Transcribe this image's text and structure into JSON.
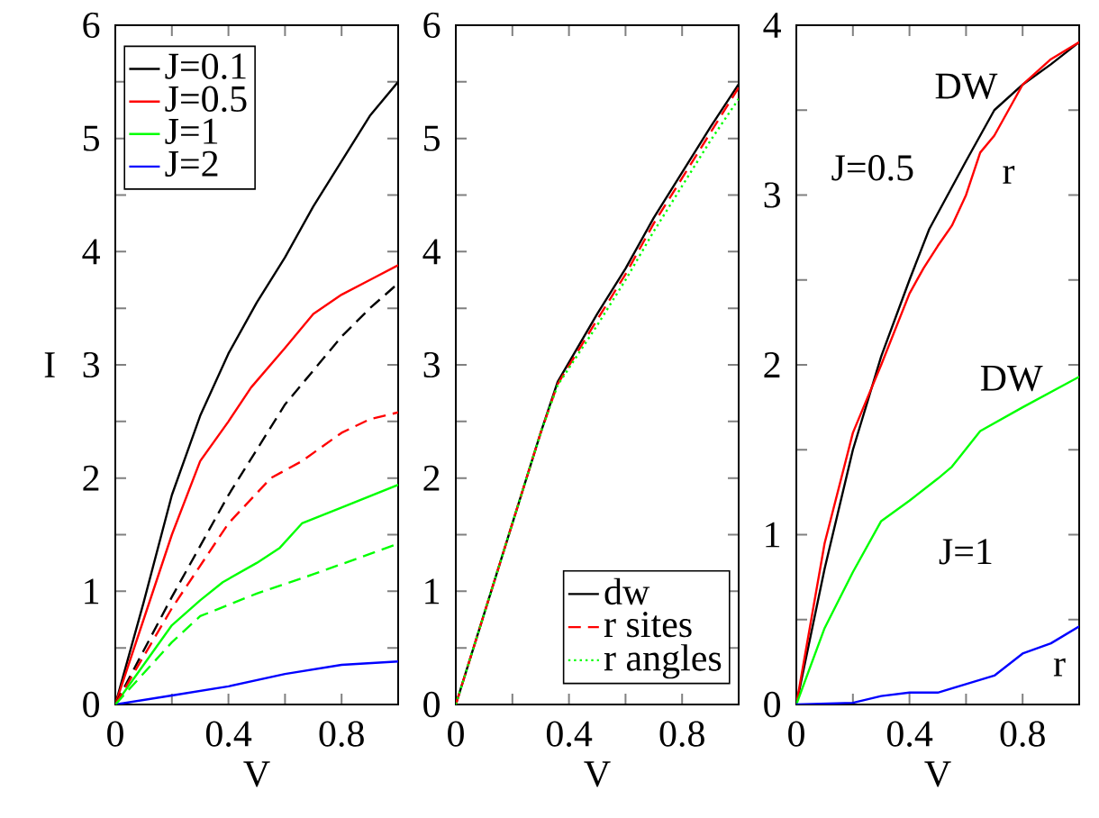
{
  "chart_data": [
    {
      "type": "line",
      "xlabel": "V",
      "ylabel": "I",
      "xlim": [
        0,
        1
      ],
      "ylim": [
        0,
        6
      ],
      "xticks": [
        0,
        {
          "value": 0.2,
          "label": null
        },
        0.4,
        {
          "value": 0.6,
          "label": null
        },
        0.8,
        {
          "value": 1,
          "label": null
        }
      ],
      "yticks": [
        0,
        {
          "value": 0.5,
          "label": null
        },
        1,
        {
          "value": 1.5,
          "label": null
        },
        2,
        {
          "value": 2.5,
          "label": null
        },
        3,
        {
          "value": 3.5,
          "label": null
        },
        4,
        {
          "value": 4.5,
          "label": null
        },
        5,
        {
          "value": 5.5,
          "label": null
        },
        6
      ],
      "legend": "top left",
      "grid": false,
      "series": [
        {
          "name": "J=0.1",
          "color": "#000000",
          "line_style": "solid",
          "x": [
            0,
            0.1,
            0.2,
            0.3,
            0.4,
            0.5,
            0.6,
            0.7,
            0.8,
            0.9,
            1
          ],
          "values": [
            0,
            0.9,
            1.85,
            2.55,
            3.1,
            3.55,
            3.95,
            4.4,
            4.8,
            5.2,
            5.5
          ]
        },
        {
          "name": "J=0.5",
          "color": "#ff0000",
          "line_style": "solid",
          "x": [
            0,
            0.1,
            0.2,
            0.3,
            0.4,
            0.48,
            0.6,
            0.7,
            0.8,
            0.9,
            1
          ],
          "values": [
            0,
            0.75,
            1.5,
            2.15,
            2.5,
            2.8,
            3.15,
            3.45,
            3.62,
            3.75,
            3.88
          ]
        },
        {
          "name": "J=1",
          "color": "#00ff00",
          "line_style": "solid",
          "x": [
            0,
            0.1,
            0.2,
            0.3,
            0.38,
            0.5,
            0.58,
            0.66,
            0.8,
            1
          ],
          "values": [
            0,
            0.35,
            0.7,
            0.92,
            1.08,
            1.25,
            1.38,
            1.6,
            1.74,
            1.94
          ]
        },
        {
          "name": "J=2",
          "color": "#0000ff",
          "line_style": "solid",
          "x": [
            0,
            0.2,
            0.4,
            0.6,
            0.8,
            1
          ],
          "values": [
            0,
            0.08,
            0.16,
            0.27,
            0.35,
            0.38
          ]
        },
        {
          "color": "#000000",
          "line_style": "dashed",
          "x": [
            0,
            0.2,
            0.4,
            0.6,
            0.8,
            0.9,
            1
          ],
          "values": [
            0,
            0.95,
            1.85,
            2.65,
            3.25,
            3.5,
            3.72
          ]
        },
        {
          "color": "#ff0000",
          "line_style": "dashed",
          "x": [
            0,
            0.2,
            0.4,
            0.55,
            0.66,
            0.8,
            0.9,
            1
          ],
          "values": [
            0,
            0.85,
            1.6,
            2.0,
            2.15,
            2.4,
            2.52,
            2.58
          ]
        },
        {
          "color": "#00ff00",
          "line_style": "dashed",
          "x": [
            0,
            0.2,
            0.3,
            0.5,
            0.7,
            0.9,
            1
          ],
          "values": [
            0,
            0.55,
            0.78,
            0.98,
            1.15,
            1.33,
            1.42
          ]
        }
      ]
    },
    {
      "type": "line",
      "xlabel": "V",
      "xlim": [
        0,
        1
      ],
      "ylim": [
        0,
        6
      ],
      "xticks": [
        0,
        {
          "value": 0.2,
          "label": null
        },
        0.4,
        {
          "value": 0.6,
          "label": null
        },
        0.8,
        {
          "value": 1,
          "label": null
        }
      ],
      "yticks": [
        0,
        {
          "value": 0.5,
          "label": null
        },
        1,
        {
          "value": 1.5,
          "label": null
        },
        2,
        {
          "value": 2.5,
          "label": null
        },
        3,
        {
          "value": 3.5,
          "label": null
        },
        4,
        {
          "value": 4.5,
          "label": null
        },
        5,
        {
          "value": 5.5,
          "label": null
        },
        6
      ],
      "legend": "bottom right",
      "grid": false,
      "series": [
        {
          "name": "dw",
          "color": "#000000",
          "line_style": "solid",
          "x": [
            0,
            0.1,
            0.2,
            0.3,
            0.36,
            0.5,
            0.6,
            0.7,
            0.8,
            0.9,
            1
          ],
          "values": [
            0,
            0.8,
            1.6,
            2.4,
            2.85,
            3.45,
            3.85,
            4.3,
            4.7,
            5.1,
            5.48
          ]
        },
        {
          "name": "r sites",
          "color": "#ff0000",
          "line_style": "dashed",
          "x": [
            0,
            0.1,
            0.2,
            0.3,
            0.36,
            0.5,
            0.6,
            0.7,
            0.8,
            0.9,
            1
          ],
          "values": [
            0,
            0.8,
            1.6,
            2.4,
            2.83,
            3.4,
            3.8,
            4.25,
            4.65,
            5.05,
            5.45
          ]
        },
        {
          "name": "r angles",
          "color": "#00ff00",
          "line_style": "dotted",
          "x": [
            0,
            0.1,
            0.2,
            0.3,
            0.36,
            0.5,
            0.6,
            0.7,
            0.8,
            0.9,
            1
          ],
          "values": [
            0,
            0.8,
            1.6,
            2.4,
            2.82,
            3.35,
            3.75,
            4.18,
            4.58,
            4.98,
            5.35
          ]
        }
      ]
    },
    {
      "type": "line",
      "xlabel": "V",
      "xlim": [
        0,
        1
      ],
      "ylim": [
        0,
        4
      ],
      "xticks": [
        0,
        {
          "value": 0.2,
          "label": null
        },
        0.4,
        {
          "value": 0.6,
          "label": null
        },
        0.8,
        {
          "value": 1,
          "label": null
        }
      ],
      "yticks": [
        0,
        {
          "value": 0.5,
          "label": null
        },
        1,
        {
          "value": 1.5,
          "label": null
        },
        2,
        {
          "value": 2.5,
          "label": null
        },
        3,
        {
          "value": 3.5,
          "label": null
        },
        4
      ],
      "grid": false,
      "series": [
        {
          "color": "#000000",
          "line_style": "solid",
          "x": [
            0,
            0.1,
            0.2,
            0.3,
            0.4,
            0.47,
            0.6,
            0.7,
            0.8,
            0.9,
            1
          ],
          "values": [
            0,
            0.8,
            1.5,
            2.05,
            2.5,
            2.8,
            3.2,
            3.5,
            3.65,
            3.77,
            3.9
          ]
        },
        {
          "color": "#ff0000",
          "line_style": "solid",
          "x": [
            0,
            0.1,
            0.2,
            0.3,
            0.4,
            0.45,
            0.5,
            0.55,
            0.6,
            0.65,
            0.7,
            0.8,
            0.9,
            1
          ],
          "values": [
            0,
            0.95,
            1.6,
            2.0,
            2.42,
            2.57,
            2.7,
            2.82,
            3.0,
            3.25,
            3.35,
            3.65,
            3.8,
            3.9
          ]
        },
        {
          "color": "#00ff00",
          "line_style": "solid",
          "x": [
            0,
            0.1,
            0.2,
            0.3,
            0.4,
            0.5,
            0.55,
            0.65,
            0.8,
            1
          ],
          "values": [
            0,
            0.45,
            0.78,
            1.08,
            1.2,
            1.33,
            1.4,
            1.61,
            1.75,
            1.93
          ]
        },
        {
          "color": "#0000ff",
          "line_style": "solid",
          "x": [
            0,
            0.2,
            0.3,
            0.4,
            0.5,
            0.6,
            0.7,
            0.8,
            0.9,
            1
          ],
          "values": [
            0,
            0.01,
            0.05,
            0.07,
            0.07,
            0.12,
            0.17,
            0.3,
            0.36,
            0.46
          ]
        }
      ],
      "annotations": [
        "DW",
        "J=0.5",
        "r",
        "DW",
        "J=1",
        "r"
      ]
    }
  ]
}
